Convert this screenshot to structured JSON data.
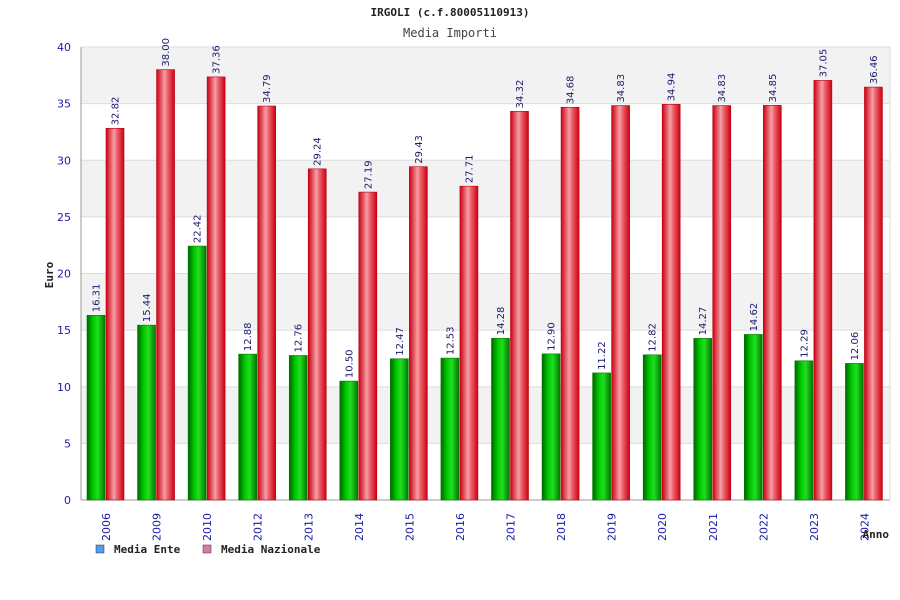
{
  "chart_data": {
    "type": "bar",
    "title": "IRGOLI (c.f.80005110913)",
    "subtitle": "Media Importi",
    "ylabel": "Euro",
    "xlabel": "Anno",
    "ylim": [
      0,
      40
    ],
    "yticks": [
      0,
      5,
      10,
      15,
      20,
      25,
      30,
      35,
      40
    ],
    "categories": [
      "2006",
      "2009",
      "2010",
      "2012",
      "2013",
      "2014",
      "2015",
      "2016",
      "2017",
      "2018",
      "2019",
      "2020",
      "2021",
      "2022",
      "2023",
      "2024"
    ],
    "series": [
      {
        "name": "Media Ente",
        "color": "#00bb00",
        "values": [
          16.31,
          15.44,
          22.42,
          12.88,
          12.76,
          10.5,
          12.47,
          12.53,
          14.28,
          12.9,
          11.22,
          12.82,
          14.27,
          14.62,
          12.29,
          12.06
        ],
        "labels": [
          "16.31",
          "15.44",
          "22.42",
          "12.88",
          "12.76",
          "10.50",
          "12.47",
          "12.53",
          "14.28",
          "12.90",
          "11.22",
          "12.82",
          "14.27",
          "14.62",
          "12.29",
          "12.06"
        ]
      },
      {
        "name": "Media Nazionale",
        "color": "#ee1122",
        "values": [
          32.82,
          38.0,
          37.36,
          34.79,
          29.24,
          27.19,
          29.43,
          27.71,
          34.32,
          34.68,
          34.83,
          34.94,
          34.83,
          34.85,
          37.05,
          36.46
        ],
        "labels": [
          "32.82",
          "38.00",
          "37.36",
          "34.79",
          "29.24",
          "27.19",
          "29.43",
          "27.71",
          "34.32",
          "34.68",
          "34.83",
          "34.94",
          "34.83",
          "34.85",
          "37.05",
          "36.46"
        ]
      }
    ],
    "legend": [
      {
        "label": "Media Ente",
        "color": "#5599ee"
      },
      {
        "label": "Media Nazionale",
        "color": "#dd77aa"
      }
    ],
    "legend_position": "bottom-left",
    "grid": true
  }
}
